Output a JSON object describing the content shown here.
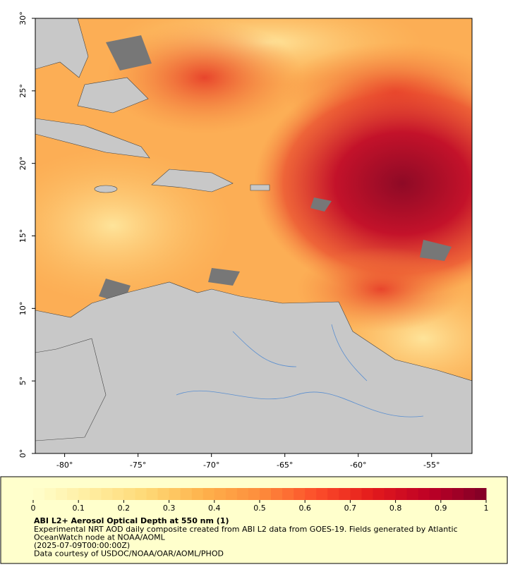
{
  "map": {
    "xlim": [
      -82,
      -52.25
    ],
    "ylim": [
      0,
      30
    ],
    "xticks": [
      {
        "value": -80,
        "label": "-80°"
      },
      {
        "value": -75,
        "label": "-75°"
      },
      {
        "value": -70,
        "label": "-70°"
      },
      {
        "value": -65,
        "label": "-65°"
      },
      {
        "value": -60,
        "label": "-60°"
      },
      {
        "value": -55,
        "label": "-55°"
      }
    ],
    "yticks": [
      {
        "value": 0,
        "label": "0°"
      },
      {
        "value": 5,
        "label": "5°"
      },
      {
        "value": 10,
        "label": "10°"
      },
      {
        "value": 15,
        "label": "15°"
      },
      {
        "value": 20,
        "label": "20°"
      },
      {
        "value": 25,
        "label": "25°"
      },
      {
        "value": 30,
        "label": "30°"
      }
    ]
  },
  "colorbar": {
    "range": [
      0,
      1
    ],
    "ticks": [
      0,
      0.1,
      0.2,
      0.3,
      0.4,
      0.5,
      0.6,
      0.7,
      0.8,
      0.9,
      1
    ],
    "colors": [
      "#ffffcc",
      "#ffeda0",
      "#fed976",
      "#feb24c",
      "#fd8d3c",
      "#fc4e2a",
      "#e31a1c",
      "#bd0026",
      "#800026"
    ],
    "steps": 40
  },
  "caption": {
    "title": "ABI L2+ Aerosol Optical Depth at 550 nm (1)",
    "lines": [
      "Experimental NRT AOD daily composite created from ABI L2 data from GOES-19. Fields generated by Atlantic",
      "OceanWatch node at NOAA/AOML",
      "(2025-07-09T00:00:00Z)",
      "Data courtesy of USDOC/NOAA/OAR/AOML/PHOD"
    ]
  }
}
